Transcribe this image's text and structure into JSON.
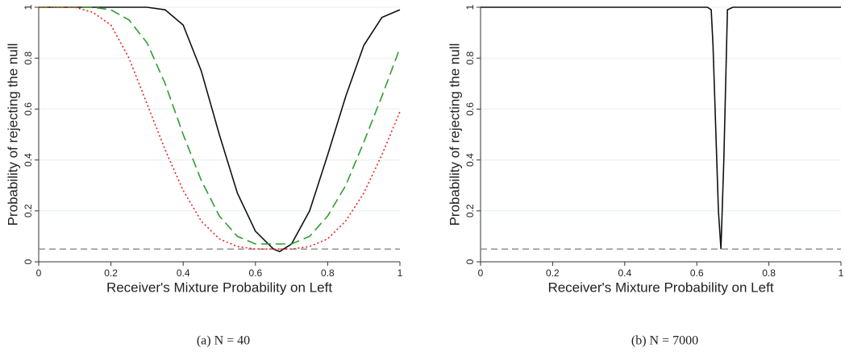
{
  "chart_data": [
    {
      "type": "line",
      "caption": "(a) N = 40",
      "x_label": "Receiver's Mixture Probability on Left",
      "y_label": "Probability of rejecting the null",
      "x": [
        0,
        0.05,
        0.1,
        0.15,
        0.2,
        0.25,
        0.3,
        0.35,
        0.4,
        0.45,
        0.5,
        0.55,
        0.6,
        0.65,
        0.667,
        0.7,
        0.75,
        0.8,
        0.85,
        0.9,
        0.95,
        1
      ],
      "series": [
        {
          "color": "#111111",
          "dash": "solid",
          "values": [
            1,
            1,
            1,
            1,
            1,
            1,
            1,
            0.99,
            0.93,
            0.75,
            0.5,
            0.27,
            0.12,
            0.05,
            0.04,
            0.07,
            0.2,
            0.42,
            0.65,
            0.85,
            0.96,
            0.99
          ]
        },
        {
          "color": "#2e9e2e",
          "dash": "dashed",
          "values": [
            1,
            1,
            1,
            1,
            0.99,
            0.95,
            0.86,
            0.7,
            0.5,
            0.32,
            0.18,
            0.1,
            0.07,
            0.07,
            0.07,
            0.07,
            0.1,
            0.18,
            0.3,
            0.47,
            0.65,
            0.84
          ]
        },
        {
          "color": "#e8231f",
          "dash": "dotted",
          "values": [
            1,
            1,
            1,
            0.98,
            0.93,
            0.8,
            0.62,
            0.44,
            0.28,
            0.16,
            0.09,
            0.06,
            0.05,
            0.05,
            0.05,
            0.05,
            0.06,
            0.09,
            0.16,
            0.27,
            0.42,
            0.59
          ]
        }
      ],
      "reference_line": 0.05,
      "grid": true,
      "xlim": [
        0,
        1
      ],
      "ylim": [
        0,
        1
      ],
      "xticks": [
        0,
        0.2,
        0.4,
        0.6,
        0.8,
        1
      ],
      "yticks": [
        0,
        0.2,
        0.4,
        0.6,
        0.8,
        1
      ]
    },
    {
      "type": "line",
      "caption": "(b) N = 7000",
      "x_label": "Receiver's Mixture Probability on Left",
      "y_label": "Probability of rejecting the null",
      "x": [
        0,
        0.6,
        0.63,
        0.64,
        0.645,
        0.66,
        0.667,
        0.675,
        0.685,
        0.7,
        1
      ],
      "series": [
        {
          "color": "#111111",
          "dash": "solid",
          "values": [
            1,
            1,
            1,
            0.99,
            0.85,
            0.2,
            0.05,
            0.4,
            0.99,
            1,
            1
          ]
        }
      ],
      "reference_line": 0.05,
      "grid": true,
      "xlim": [
        0,
        1
      ],
      "ylim": [
        0,
        1
      ],
      "xticks": [
        0,
        0.2,
        0.4,
        0.6,
        0.8,
        1
      ],
      "yticks": [
        0,
        0.2,
        0.4,
        0.6,
        0.8,
        1
      ]
    }
  ]
}
